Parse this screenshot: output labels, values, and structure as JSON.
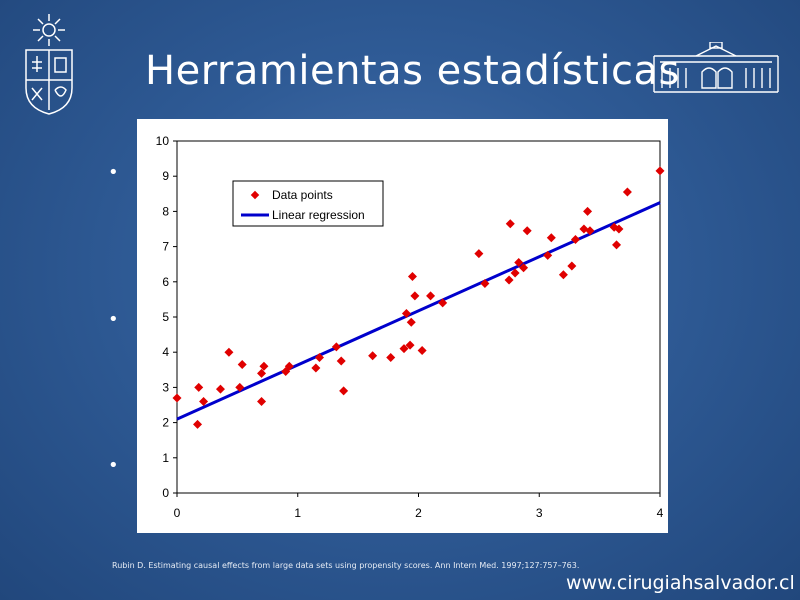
{
  "slide": {
    "title": "Herramientas estadísticas",
    "citation": "Rubin D. Estimating causal effects from large data sets using propensity scores. Ann Intern Med. 1997;127:757–763.",
    "website": "www.cirugiahsalvador.cl",
    "bullets": [
      "•",
      "•",
      "•"
    ]
  },
  "colors": {
    "background": "#2f5b96",
    "points": "#e00000",
    "regression": "#0000cc"
  },
  "chart_data": {
    "type": "scatter",
    "xlim": [
      0,
      4
    ],
    "ylim": [
      0,
      10
    ],
    "xticks": [
      0,
      1,
      2,
      3,
      4
    ],
    "yticks": [
      0,
      1,
      2,
      3,
      4,
      5,
      6,
      7,
      8,
      9,
      10
    ],
    "legend_position": "top-left",
    "grid": false,
    "series": [
      {
        "name": "Data points",
        "kind": "scatter",
        "points": [
          [
            0.0,
            2.7
          ],
          [
            0.17,
            1.95
          ],
          [
            0.18,
            3.0
          ],
          [
            0.22,
            2.6
          ],
          [
            0.36,
            2.95
          ],
          [
            0.43,
            4.0
          ],
          [
            0.52,
            3.0
          ],
          [
            0.54,
            3.65
          ],
          [
            0.7,
            2.6
          ],
          [
            0.7,
            3.4
          ],
          [
            0.72,
            3.6
          ],
          [
            0.9,
            3.45
          ],
          [
            0.93,
            3.6
          ],
          [
            1.15,
            3.55
          ],
          [
            1.18,
            3.85
          ],
          [
            1.32,
            4.15
          ],
          [
            1.36,
            3.75
          ],
          [
            1.38,
            2.9
          ],
          [
            1.62,
            3.9
          ],
          [
            1.77,
            3.85
          ],
          [
            1.88,
            4.1
          ],
          [
            1.9,
            5.1
          ],
          [
            1.93,
            4.2
          ],
          [
            1.94,
            4.85
          ],
          [
            1.95,
            6.15
          ],
          [
            1.97,
            5.6
          ],
          [
            2.03,
            4.05
          ],
          [
            2.1,
            5.6
          ],
          [
            2.2,
            5.4
          ],
          [
            2.5,
            6.8
          ],
          [
            2.55,
            5.95
          ],
          [
            2.75,
            6.05
          ],
          [
            2.76,
            7.65
          ],
          [
            2.8,
            6.25
          ],
          [
            2.83,
            6.55
          ],
          [
            2.87,
            6.4
          ],
          [
            2.9,
            7.45
          ],
          [
            3.07,
            6.75
          ],
          [
            3.1,
            7.25
          ],
          [
            3.2,
            6.2
          ],
          [
            3.27,
            6.45
          ],
          [
            3.3,
            7.2
          ],
          [
            3.37,
            7.5
          ],
          [
            3.4,
            8.0
          ],
          [
            3.42,
            7.45
          ],
          [
            3.62,
            7.55
          ],
          [
            3.64,
            7.05
          ],
          [
            3.66,
            7.5
          ],
          [
            3.73,
            8.55
          ],
          [
            4.0,
            9.15
          ]
        ]
      },
      {
        "name": "Linear regression",
        "kind": "line",
        "points": [
          [
            0,
            2.1
          ],
          [
            4,
            8.25
          ]
        ]
      }
    ]
  }
}
